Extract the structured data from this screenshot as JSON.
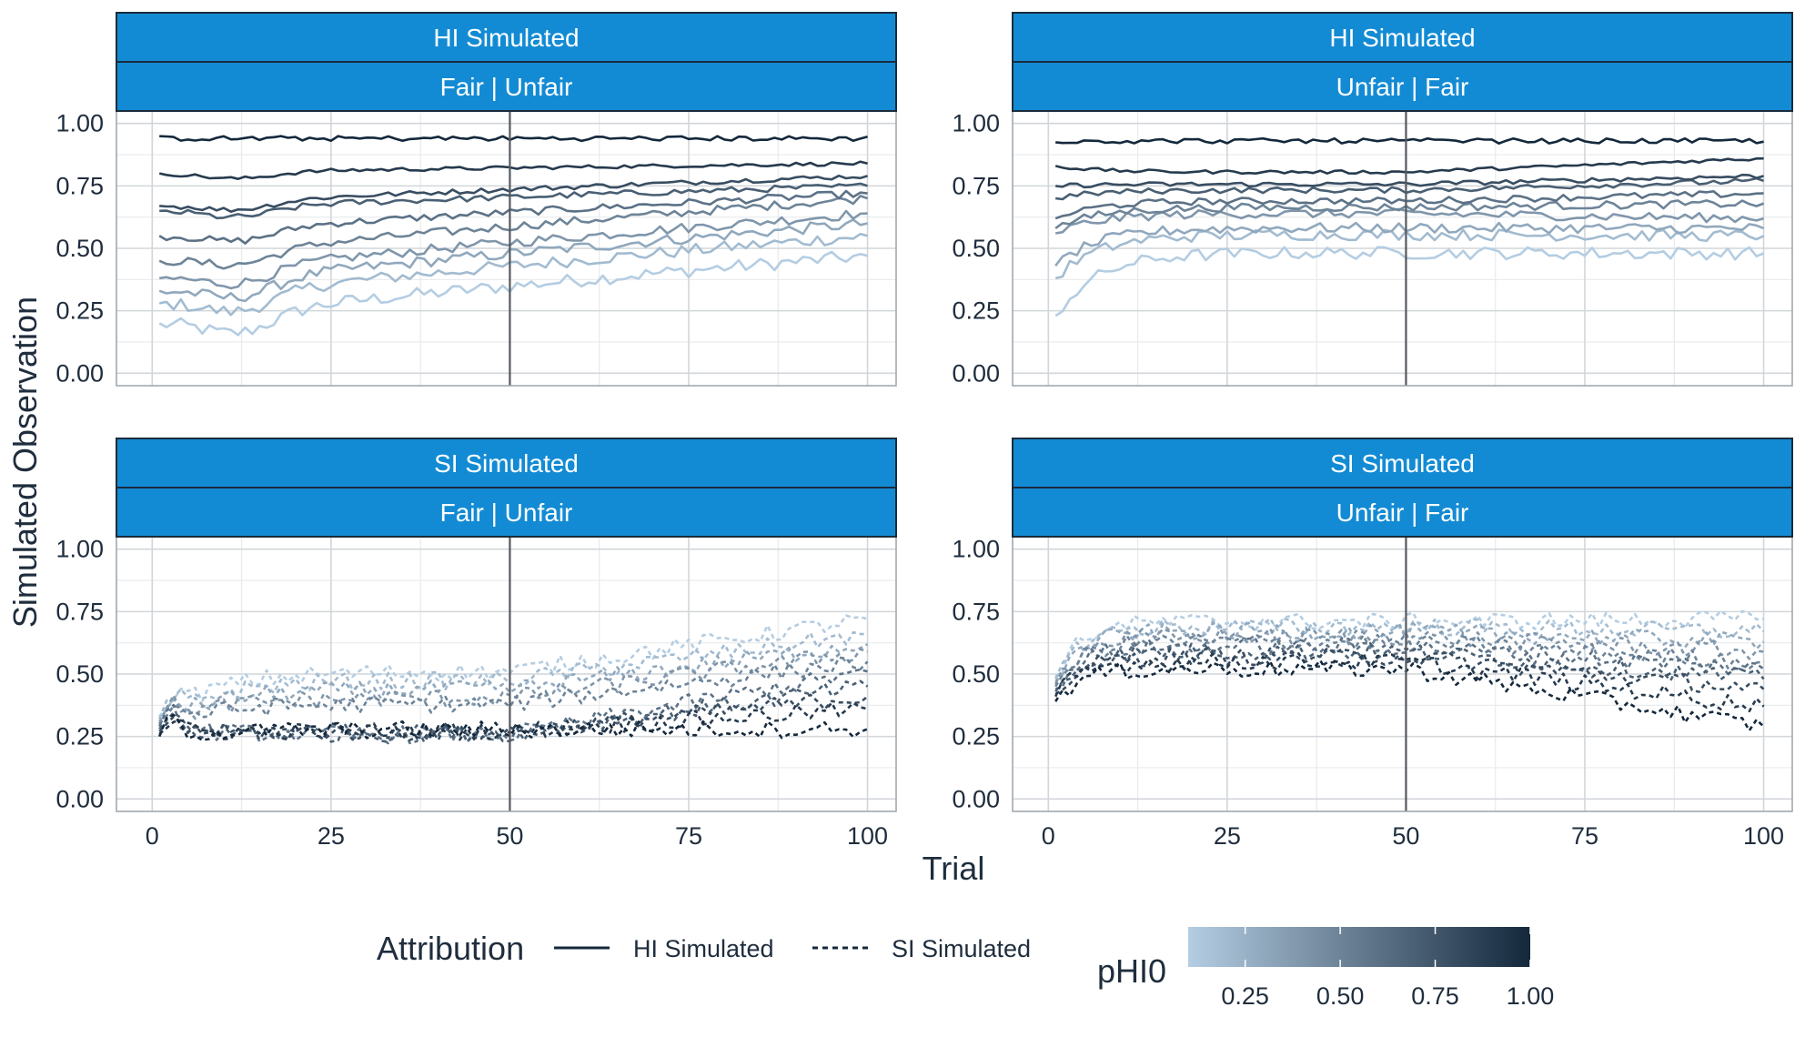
{
  "chart_data": {
    "type": "line",
    "facets": [
      {
        "strip_top": "HI Simulated",
        "strip_bottom": "Fair | Unfair",
        "attribution": "HI Simulated",
        "profile": "fairUnfair",
        "start": [
          0.2,
          0.28,
          0.33,
          0.38,
          0.45,
          0.55,
          0.65,
          0.67,
          0.8,
          0.94
        ],
        "end": [
          0.47,
          0.55,
          0.6,
          0.64,
          0.7,
          0.72,
          0.75,
          0.79,
          0.84,
          0.94
        ]
      },
      {
        "strip_top": "HI Simulated",
        "strip_bottom": "Unfair | Fair",
        "attribution": "HI Simulated",
        "profile": "unfairFair",
        "start": [
          0.23,
          0.38,
          0.43,
          0.56,
          0.58,
          0.62,
          0.7,
          0.75,
          0.83,
          0.94
        ],
        "end": [
          0.48,
          0.55,
          0.58,
          0.62,
          0.68,
          0.72,
          0.77,
          0.79,
          0.86,
          0.94
        ]
      },
      {
        "strip_top": "SI Simulated",
        "strip_bottom": "Fair | Unfair",
        "attribution": "SI Simulated",
        "profile": "siFairUnfair",
        "start": [
          0.33,
          0.32,
          0.31,
          0.3,
          0.3,
          0.29,
          0.28,
          0.27,
          0.26,
          0.25
        ],
        "end": [
          0.72,
          0.66,
          0.62,
          0.59,
          0.55,
          0.51,
          0.45,
          0.41,
          0.36,
          0.28
        ]
      },
      {
        "strip_top": "SI Simulated",
        "strip_bottom": "Unfair | Fair",
        "attribution": "SI Simulated",
        "profile": "siUnfairFair",
        "start": [
          0.49,
          0.48,
          0.47,
          0.46,
          0.45,
          0.44,
          0.43,
          0.42,
          0.41,
          0.39
        ],
        "end": [
          0.72,
          0.67,
          0.63,
          0.59,
          0.55,
          0.52,
          0.48,
          0.44,
          0.37,
          0.29
        ]
      }
    ],
    "pHI0_levels": [
      0.1,
      0.2,
      0.3,
      0.4,
      0.5,
      0.6,
      0.7,
      0.8,
      0.9,
      1.0
    ],
    "x_range": [
      1,
      100
    ],
    "xlim": [
      -5,
      104
    ],
    "ylim": [
      -0.05,
      1.05
    ],
    "x_ticks": [
      0,
      25,
      50,
      75,
      100
    ],
    "x_tick_labels": [
      "0",
      "25",
      "50",
      "75",
      "100"
    ],
    "y_ticks": [
      0,
      0.25,
      0.5,
      0.75,
      1.0
    ],
    "y_tick_labels": [
      "0.00",
      "0.25",
      "0.50",
      "0.75",
      "1.00"
    ],
    "vline_x": 50,
    "xlabel": "Trial",
    "ylabel": "Simulated Observation",
    "grid": true,
    "legend": {
      "placement": "bottom",
      "linetype_title": "Attribution",
      "linetype_items": [
        {
          "label": "HI Simulated",
          "dash": "solid"
        },
        {
          "label": "SI Simulated",
          "dash": "dashed"
        }
      ],
      "color_title": "pHI0",
      "color_ticks": [
        0.25,
        0.5,
        0.75,
        1.0
      ],
      "color_tick_labels": [
        "0.25",
        "0.50",
        "0.75",
        "1.00"
      ],
      "color_range": [
        0.1,
        1.0
      ]
    },
    "colors": {
      "strip_fill": "#138bd4",
      "strip_border": "#1a2b3c",
      "low": "#b4cde2",
      "high": "#14283c",
      "grid_major": "#d2d6da",
      "grid_minor": "#e8eaec",
      "panel_border": "#9aa3ab",
      "vline": "#55595e"
    }
  }
}
